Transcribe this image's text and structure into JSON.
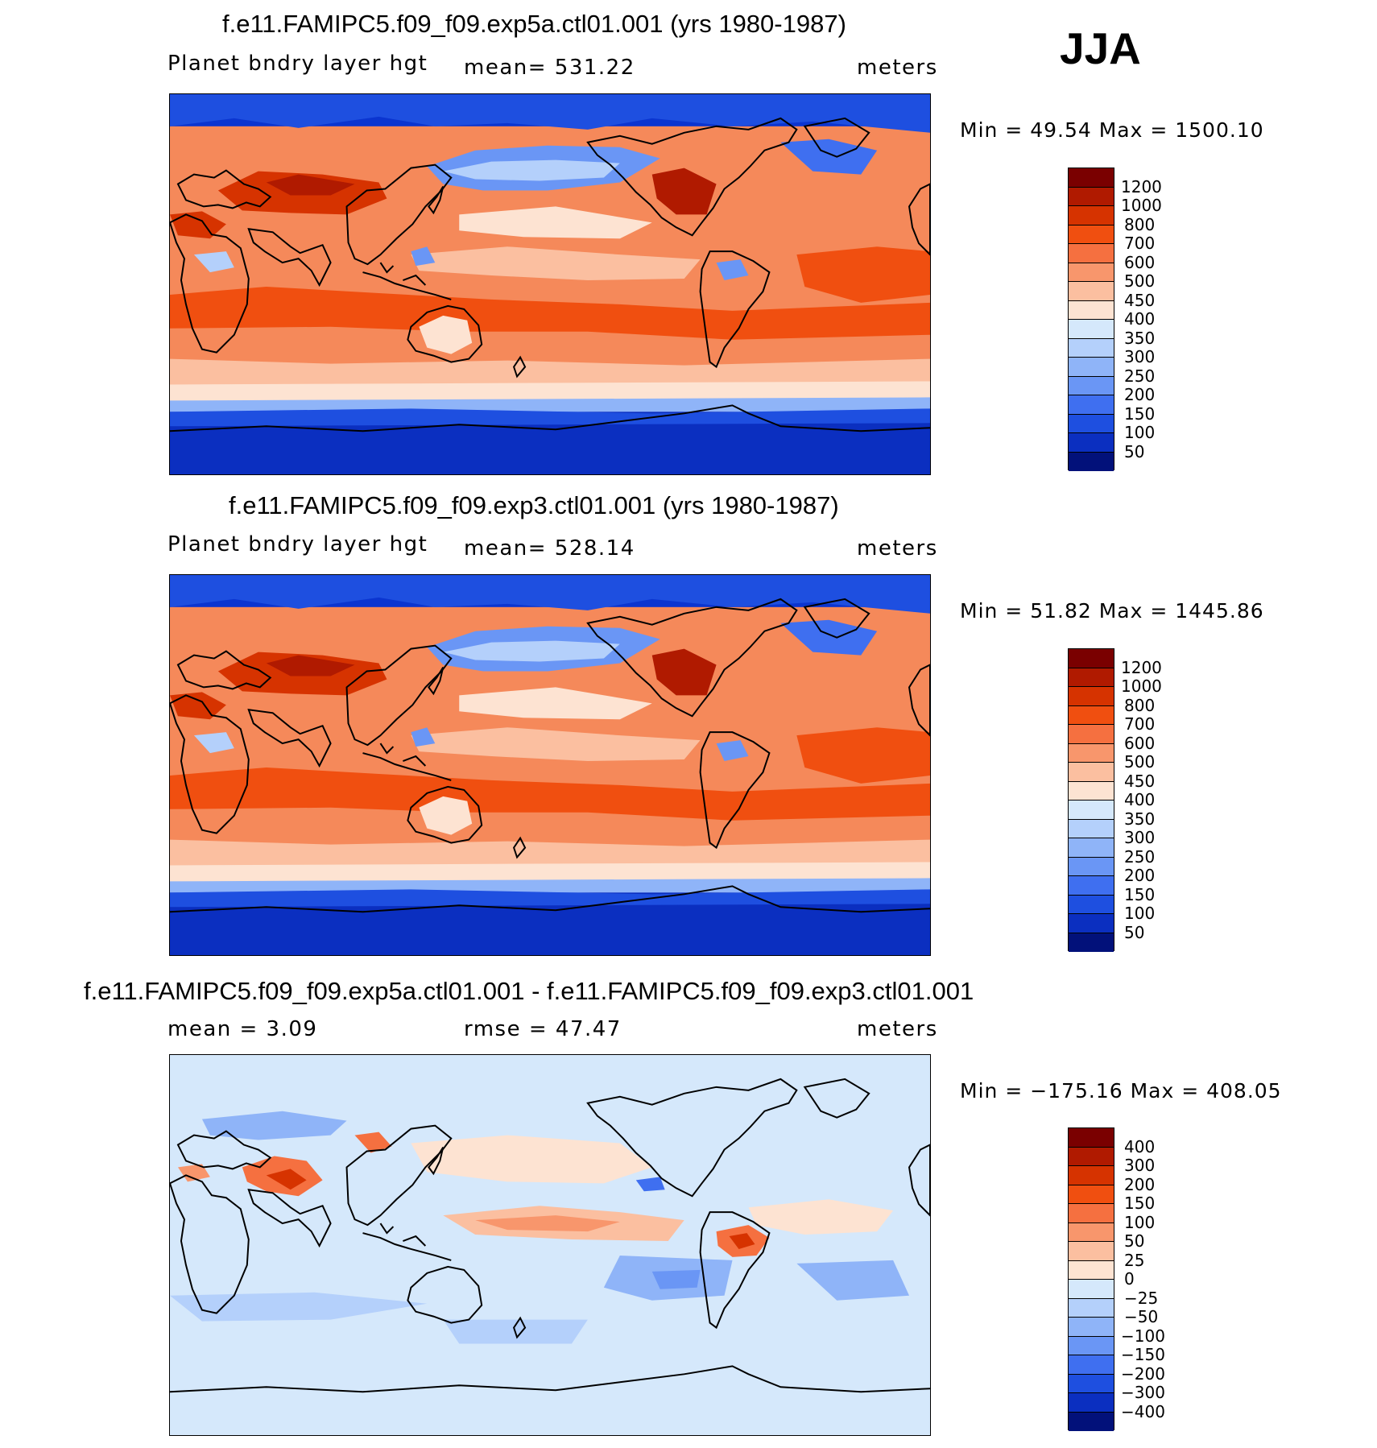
{
  "season": "JJA",
  "panels": [
    {
      "title": "f.e11.FAMIPC5.f09_f09.exp5a.ctl01.001 (yrs 1980-1987)",
      "left_text": "Planet bndry layer hgt",
      "mid_text": "mean= 531.22",
      "units": "meters",
      "minmax": "Min =   49.54 Max = 1500.10",
      "map_theme": "warm"
    },
    {
      "title": "f.e11.FAMIPC5.f09_f09.exp3.ctl01.001 (yrs 1980-1987)",
      "left_text": "Planet bndry layer hgt",
      "mid_text": "mean= 528.14",
      "units": "meters",
      "minmax": "Min =   51.82 Max = 1445.86",
      "map_theme": "warm"
    },
    {
      "title": "f.e11.FAMIPC5.f09_f09.exp5a.ctl01.001 - f.e11.FAMIPC5.f09_f09.exp3.ctl01.001",
      "left_text": "mean =    3.09",
      "mid_text": "rmse =   47.47",
      "units": "meters",
      "minmax": "Min = −175.16 Max = 408.05",
      "map_theme": "diff"
    }
  ],
  "colorbars": {
    "abs": {
      "labels": [
        "1200",
        "1000",
        "800",
        "700",
        "600",
        "500",
        "450",
        "400",
        "350",
        "300",
        "250",
        "200",
        "150",
        "100",
        "50"
      ],
      "colors": [
        "#7a0000",
        "#b01a00",
        "#d63300",
        "#f04f10",
        "#f57040",
        "#f8966c",
        "#fbbfa0",
        "#fde3d2",
        "#d5e8fb",
        "#b4d0fb",
        "#8fb4f8",
        "#6a96f5",
        "#3f6ff0",
        "#1e4fe0",
        "#0b2fc0",
        "#02117a"
      ]
    },
    "diff": {
      "labels": [
        "400",
        "300",
        "200",
        "150",
        "100",
        "50",
        "25",
        "0",
        "−25",
        "−50",
        "−100",
        "−150",
        "−200",
        "−300",
        "−400"
      ],
      "colors": [
        "#7a0000",
        "#b01a00",
        "#d63300",
        "#f04f10",
        "#f57040",
        "#f8966c",
        "#fbbfa0",
        "#fde3d2",
        "#d5e8fb",
        "#b4d0fb",
        "#8fb4f8",
        "#6a96f5",
        "#3f6ff0",
        "#1e4fe0",
        "#0b2fc0",
        "#02117a"
      ]
    }
  }
}
